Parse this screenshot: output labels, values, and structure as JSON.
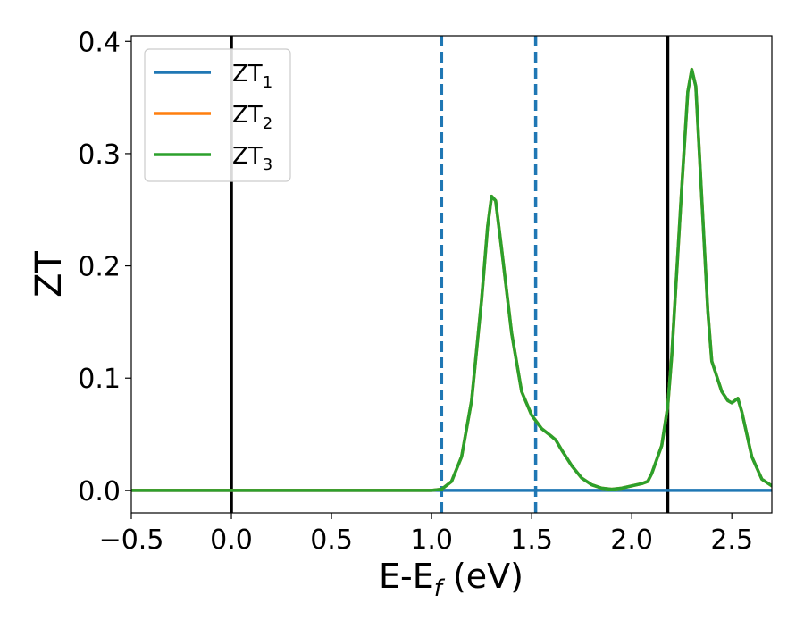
{
  "chart_data": {
    "type": "line",
    "title": "",
    "xlabel_main": "E-E",
    "xlabel_sub": "f",
    "xlabel_unit": " (eV)",
    "ylabel": "ZT",
    "xlim": [
      -0.5,
      2.7
    ],
    "ylim": [
      -0.02,
      0.405
    ],
    "x_ticks": [
      -0.5,
      0.0,
      0.5,
      1.0,
      1.5,
      2.0,
      2.5
    ],
    "x_tick_labels": [
      "−0.5",
      "0.0",
      "0.5",
      "1.0",
      "1.5",
      "2.0",
      "2.5"
    ],
    "y_ticks": [
      0.0,
      0.1,
      0.2,
      0.3,
      0.4
    ],
    "y_tick_labels": [
      "0.0",
      "0.1",
      "0.2",
      "0.3",
      "0.4"
    ],
    "grid": false,
    "legend_position": "top-left",
    "vlines": [
      {
        "x": 0.0,
        "color": "#000000",
        "style": "solid"
      },
      {
        "x": 2.18,
        "color": "#000000",
        "style": "solid"
      },
      {
        "x": 1.05,
        "color": "#1f77b4",
        "style": "dashed"
      },
      {
        "x": 1.52,
        "color": "#1f77b4",
        "style": "dashed"
      }
    ],
    "series": [
      {
        "name": "ZT",
        "sub": "1",
        "color": "#1f77b4",
        "x": [
          -0.5,
          2.7
        ],
        "y": [
          0.0,
          0.0
        ]
      },
      {
        "name": "ZT",
        "sub": "2",
        "color": "#ff7f0e",
        "x": [
          -0.5,
          1.0,
          1.05,
          1.1,
          1.15,
          1.2,
          1.25,
          1.28,
          1.3,
          1.32,
          1.35,
          1.4,
          1.45,
          1.5,
          1.55,
          1.6,
          1.62,
          1.65,
          1.7,
          1.75,
          1.8,
          1.85,
          1.9,
          1.95,
          2.0,
          2.05,
          2.08,
          2.1,
          2.15,
          2.18,
          2.2,
          2.25,
          2.28,
          2.3,
          2.32,
          2.35,
          2.38,
          2.4,
          2.45,
          2.48,
          2.5,
          2.53,
          2.55,
          2.6,
          2.65,
          2.7
        ],
        "y": [
          0.0,
          0.0,
          0.001,
          0.008,
          0.03,
          0.08,
          0.17,
          0.235,
          0.262,
          0.258,
          0.215,
          0.14,
          0.088,
          0.067,
          0.055,
          0.048,
          0.045,
          0.036,
          0.022,
          0.011,
          0.005,
          0.002,
          0.001,
          0.002,
          0.004,
          0.006,
          0.008,
          0.015,
          0.04,
          0.075,
          0.12,
          0.27,
          0.355,
          0.375,
          0.36,
          0.26,
          0.16,
          0.115,
          0.088,
          0.08,
          0.078,
          0.082,
          0.07,
          0.03,
          0.01,
          0.004
        ]
      },
      {
        "name": "ZT",
        "sub": "3",
        "color": "#2ca02c",
        "x": [
          -0.5,
          1.0,
          1.05,
          1.1,
          1.15,
          1.2,
          1.25,
          1.28,
          1.3,
          1.32,
          1.35,
          1.4,
          1.45,
          1.5,
          1.55,
          1.6,
          1.62,
          1.65,
          1.7,
          1.75,
          1.8,
          1.85,
          1.9,
          1.95,
          2.0,
          2.05,
          2.08,
          2.1,
          2.15,
          2.18,
          2.2,
          2.25,
          2.28,
          2.3,
          2.32,
          2.35,
          2.38,
          2.4,
          2.45,
          2.48,
          2.5,
          2.53,
          2.55,
          2.6,
          2.65,
          2.7
        ],
        "y": [
          0.0,
          0.0,
          0.001,
          0.008,
          0.03,
          0.08,
          0.17,
          0.235,
          0.262,
          0.258,
          0.215,
          0.14,
          0.088,
          0.067,
          0.055,
          0.048,
          0.045,
          0.036,
          0.022,
          0.011,
          0.005,
          0.002,
          0.001,
          0.002,
          0.004,
          0.006,
          0.008,
          0.015,
          0.04,
          0.075,
          0.12,
          0.27,
          0.355,
          0.375,
          0.36,
          0.26,
          0.16,
          0.115,
          0.088,
          0.08,
          0.078,
          0.082,
          0.07,
          0.03,
          0.01,
          0.004
        ]
      }
    ]
  }
}
